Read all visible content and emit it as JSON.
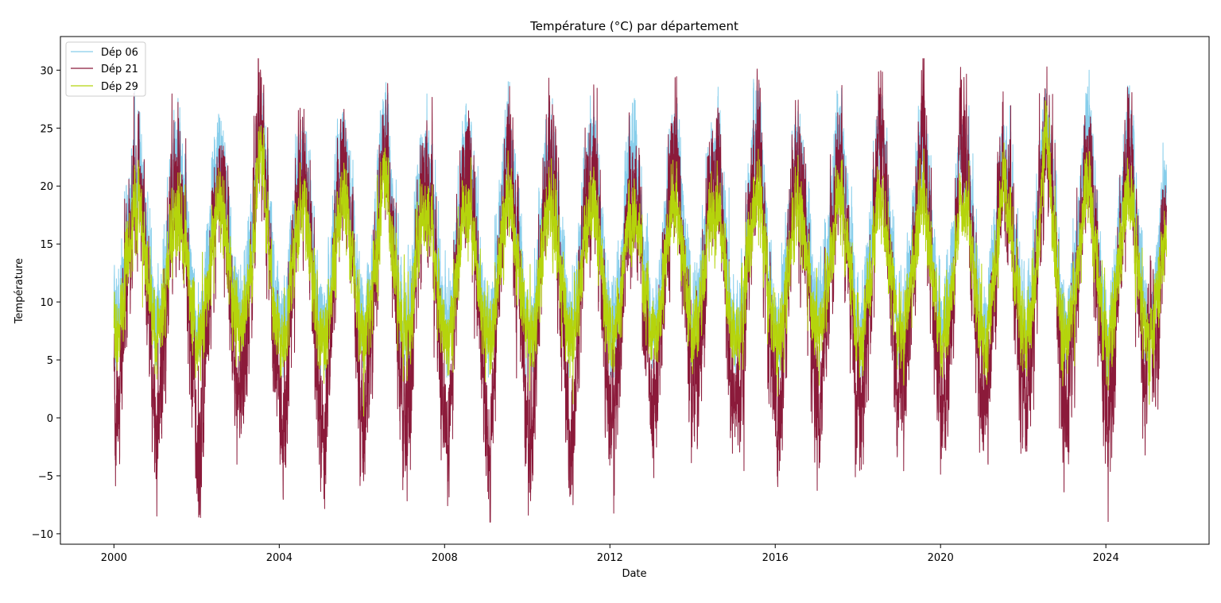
{
  "chart_data": {
    "type": "line",
    "title": "Température (°C) par département",
    "xlabel": "Date",
    "ylabel": "Température",
    "x_ticks": [
      "2000",
      "2004",
      "2008",
      "2012",
      "2016",
      "2020",
      "2024"
    ],
    "y_ticks": [
      "−10",
      "−5",
      "0",
      "5",
      "10",
      "15",
      "20",
      "25",
      "30"
    ],
    "xlim": [
      "1998-09-15",
      "2026-07-01"
    ],
    "ylim": [
      -10.9,
      32.9
    ],
    "grid": false,
    "legend_position": "top-left",
    "x_range": [
      "2000-01-01",
      "2025-06-20"
    ],
    "series": [
      {
        "name": "Dép 06",
        "color": "#87ceeb",
        "seasonal_mean": 15.5,
        "seasonal_amplitude": 7.5,
        "noise": 2.3,
        "range": [
          3.5,
          30.0
        ],
        "yearly_max": [
          26.0,
          27.2,
          27.4,
          28.5,
          26.0,
          26.9,
          28.9,
          25.7,
          25.8,
          28.0,
          27.6,
          27.8,
          28.3,
          27.8,
          26.0,
          29.6,
          25.8,
          28.3,
          28.5,
          27.0,
          26.7,
          26.5,
          29.6,
          29.8,
          29.2,
          24.0
        ]
      },
      {
        "name": "Dép 21",
        "color": "#8b1a3a",
        "seasonal_mean": 11.5,
        "seasonal_amplitude": 10.0,
        "noise": 3.4,
        "range": [
          -9.0,
          31.0
        ],
        "yearly_max": [
          24.0,
          25.0,
          25.5,
          31.0,
          25.5,
          26.5,
          28.9,
          25.0,
          25.5,
          27.0,
          27.0,
          26.0,
          26.0,
          27.0,
          25.5,
          28.5,
          25.5,
          28.5,
          30.0,
          30.5,
          29.4,
          25.5,
          29.5,
          28.5,
          28.0,
          26.5
        ],
        "yearly_min": [
          -5.6,
          -6.8,
          -7.7,
          -3.2,
          -6.1,
          -8.2,
          -5.8,
          -5.9,
          -6.7,
          -8.5,
          -6.8,
          -8.9,
          -4.1,
          -3.9,
          -3.0,
          -3.4,
          -5.1,
          -6.3,
          -3.2,
          -2.3,
          -4.0,
          -3.8,
          -3.9,
          -4.1,
          -3.3,
          5.0
        ]
      },
      {
        "name": "Dép 29",
        "color": "#b5d40c",
        "seasonal_mean": 12.5,
        "seasonal_amplitude": 5.5,
        "noise": 1.9,
        "range": [
          -2.0,
          28.5
        ],
        "yearly_max": [
          21.5,
          20.5,
          21.5,
          26.5,
          21.0,
          22.0,
          24.5,
          20.0,
          21.0,
          22.0,
          21.5,
          21.5,
          21.0,
          21.5,
          20.5,
          22.5,
          21.5,
          23.0,
          21.5,
          22.0,
          21.5,
          24.0,
          28.5,
          24.5,
          22.5,
          19.0
        ]
      }
    ]
  }
}
